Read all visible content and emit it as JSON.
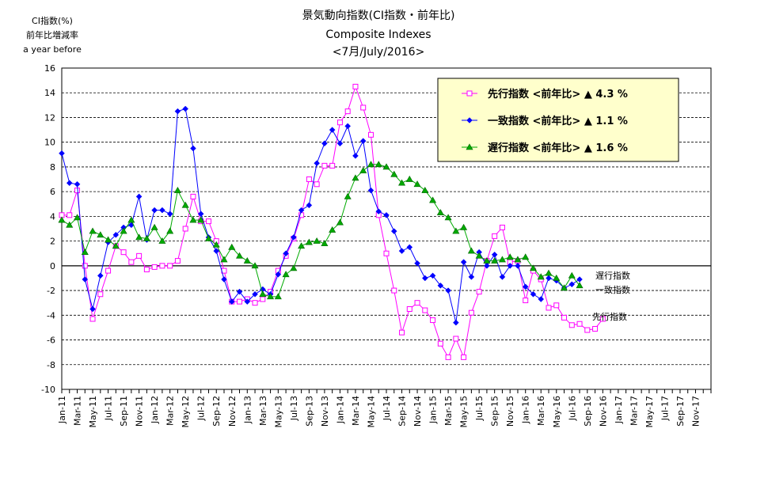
{
  "chart_data": {
    "type": "line",
    "title": "景気動向指数(CI指数・前年比)",
    "subtitle1": "Composite Indexes",
    "subtitle2": "<7月/July/2016>",
    "ylabel_lines": [
      "CI指数(%)",
      "前年比増減率",
      "a year before"
    ],
    "ylim": [
      -10,
      16
    ],
    "yticks": [
      16,
      14,
      12,
      10,
      8,
      6,
      4,
      2,
      0,
      -2,
      -4,
      -6,
      -8,
      -10
    ],
    "x_tick_labels": [
      "Jan-11",
      "Mar-11",
      "May-11",
      "Jul-11",
      "Sep-11",
      "Nov-11",
      "Jan-12",
      "Mar-12",
      "May-12",
      "Jul-12",
      "Sep-12",
      "Nov-12",
      "Jan-13",
      "Mar-13",
      "May-13",
      "Jul-13",
      "Sep-13",
      "Nov-13",
      "Jan-14",
      "Mar-14",
      "May-14",
      "Jul-14",
      "Sep-14",
      "Nov-14",
      "Jan-15",
      "Mar-15",
      "May-15",
      "Jul-15",
      "Sep-15",
      "Nov-15",
      "Jan-16",
      "Mar-16",
      "May-16",
      "Jul-16",
      "Sep-16",
      "Nov-16",
      "Jan-17",
      "Mar-17",
      "May-17",
      "Jul-17",
      "Sep-17",
      "Nov-17"
    ],
    "grid": true,
    "legend_position": "top-right",
    "series": [
      {
        "name": "先行指数",
        "legend_label": "先行指数 <前年比> ▲ 4.3 %",
        "end_label": "先行指数",
        "color": "#ff00ff",
        "marker": "square",
        "values": [
          4.1,
          4.1,
          6.1,
          0.0,
          -4.3,
          -2.3,
          -0.4,
          1.6,
          1.1,
          0.3,
          0.8,
          -0.3,
          -0.1,
          0.0,
          0.0,
          0.4,
          3.0,
          5.6,
          3.6,
          3.6,
          2.0,
          -0.4,
          -2.9,
          -2.9,
          -2.7,
          -3.0,
          -2.7,
          -2.1,
          -0.4,
          0.8,
          2.2,
          4.1,
          7.0,
          6.6,
          8.1,
          8.1,
          11.6,
          12.5,
          14.5,
          12.8,
          10.6,
          4.1,
          1.0,
          -2.0,
          -5.4,
          -3.5,
          -3.0,
          -3.6,
          -4.4,
          -6.3,
          -7.4,
          -5.9,
          -7.4,
          -3.8,
          -2.1,
          0.4,
          2.4,
          3.1,
          0.3,
          0.4,
          -2.8,
          -0.4,
          -1.1,
          -3.4,
          -3.2,
          -4.2,
          -4.8,
          -4.7,
          -5.2,
          -5.1,
          -4.3
        ]
      },
      {
        "name": "一致指数",
        "legend_label": "一致指数 <前年比> ▲ 1.1 %",
        "end_label": "一致指数",
        "color": "#0000ff",
        "marker": "diamond",
        "values": [
          9.1,
          6.7,
          6.6,
          -1.1,
          -3.5,
          -0.8,
          1.9,
          2.5,
          3.1,
          3.3,
          5.6,
          2.1,
          4.5,
          4.5,
          4.2,
          12.5,
          12.7,
          9.5,
          4.2,
          2.3,
          1.2,
          -1.1,
          -2.9,
          -2.1,
          -2.9,
          -2.3,
          -1.9,
          -2.3,
          -0.7,
          1.0,
          2.3,
          4.5,
          4.9,
          8.3,
          9.9,
          11.0,
          9.9,
          11.3,
          8.9,
          10.1,
          6.1,
          4.4,
          4.1,
          2.8,
          1.2,
          1.5,
          0.2,
          -1.0,
          -0.8,
          -1.6,
          -2.0,
          -4.6,
          0.3,
          -0.9,
          1.1,
          0.0,
          0.9,
          -0.9,
          0.0,
          0.0,
          -1.7,
          -2.3,
          -2.7,
          -1.0,
          -1.2,
          -1.8,
          -1.5,
          -1.1
        ]
      },
      {
        "name": "遅行指数",
        "legend_label": "遅行指数 <前年比> ▲ 1.6 %",
        "end_label": "遅行指数",
        "color": "#00aa00",
        "marker": "triangle",
        "values": [
          3.7,
          3.3,
          3.9,
          1.1,
          2.8,
          2.5,
          2.1,
          1.6,
          2.8,
          3.7,
          2.3,
          2.2,
          3.1,
          2.0,
          2.8,
          6.1,
          4.9,
          3.7,
          3.7,
          2.2,
          1.7,
          0.5,
          1.5,
          0.8,
          0.4,
          0.0,
          -2.3,
          -2.5,
          -2.5,
          -0.7,
          -0.2,
          1.6,
          1.9,
          2.0,
          1.8,
          2.9,
          3.5,
          5.6,
          7.1,
          7.7,
          8.2,
          8.2,
          8.0,
          7.4,
          6.7,
          7.0,
          6.6,
          6.1,
          5.3,
          4.3,
          3.9,
          2.8,
          3.1,
          1.2,
          0.8,
          0.4,
          0.4,
          0.5,
          0.7,
          0.5,
          0.7,
          -0.2,
          -0.9,
          -0.6,
          -1.0,
          -1.8,
          -0.8,
          -1.6
        ]
      }
    ]
  }
}
